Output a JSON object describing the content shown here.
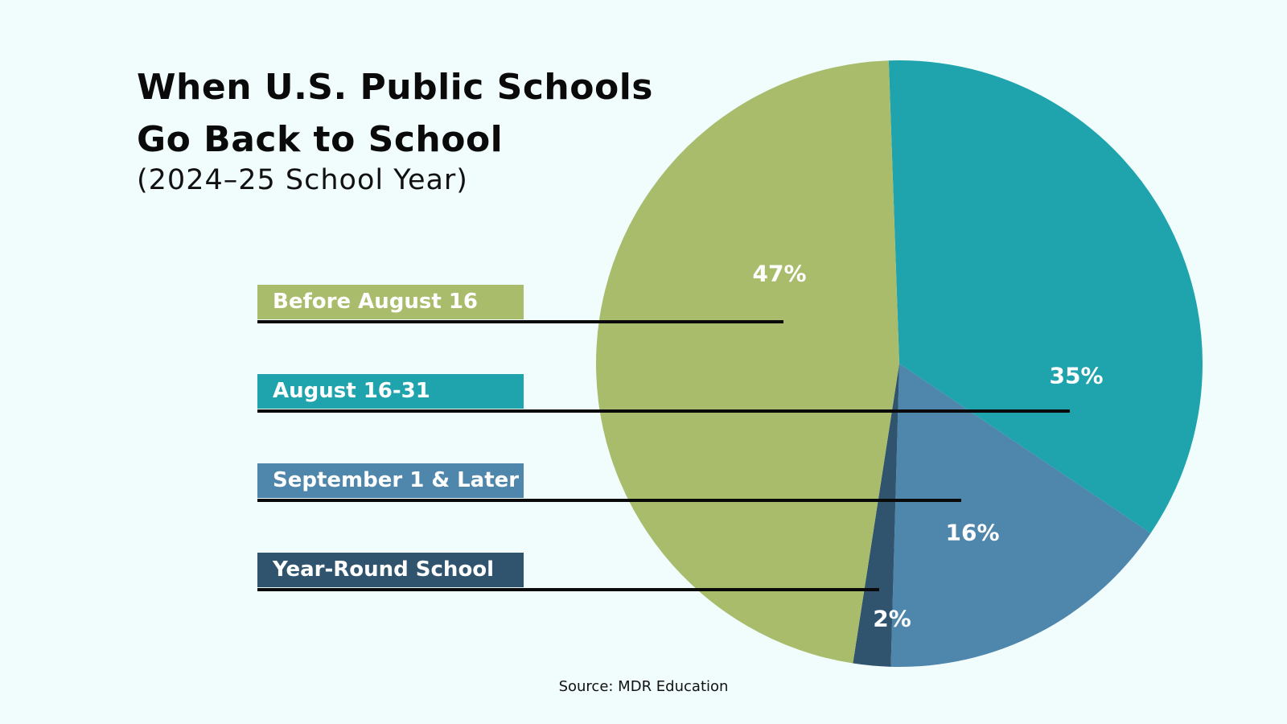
{
  "chart_data": {
    "type": "pie",
    "title": "When U.S. Public Schools Go Back to School",
    "title_lines": [
      "When U.S. Public Schools",
      "Go Back to School"
    ],
    "subtitle": "(2024–25 School Year)",
    "source": "Source: MDR Education",
    "legend_placement": "left",
    "slices": [
      {
        "label": "August 16-31",
        "value": 35,
        "value_label": "35%",
        "color": "#1fa3ac"
      },
      {
        "label": "September 1 & Later",
        "value": 16,
        "value_label": "16%",
        "color": "#4f86ab"
      },
      {
        "label": "Year-Round School",
        "value": 2,
        "value_label": "2%",
        "color": "#30546e"
      },
      {
        "label": "Before August 16",
        "value": 47,
        "value_label": "47%",
        "color": "#a9bc6c"
      }
    ],
    "legend_order": [
      3,
      0,
      1,
      2
    ]
  }
}
